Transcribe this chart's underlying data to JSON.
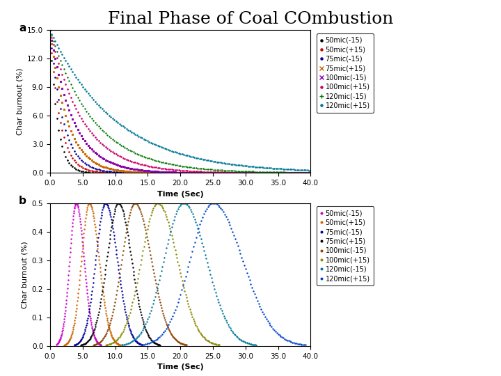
{
  "title": "Final Phase of Coal COmbustion",
  "subplot_a_label": "a",
  "subplot_b_label": "b",
  "xlabel": "Time (Sec)",
  "ylabel": "Char burnout (%)",
  "xlim_a": [
    0,
    40
  ],
  "xlim_b": [
    0,
    40
  ],
  "ylim_a": [
    0,
    15
  ],
  "ylim_b": [
    0,
    0.5
  ],
  "xticks_a": [
    0.0,
    5.0,
    10.0,
    15.0,
    20.0,
    25.0,
    30.0,
    35.0,
    40.0
  ],
  "yticks_a": [
    0.0,
    3.0,
    6.0,
    9.0,
    12.0,
    15.0
  ],
  "xticks_b": [
    0.0,
    5.0,
    10.0,
    15.0,
    20.0,
    25.0,
    30.0,
    35.0,
    40.0
  ],
  "yticks_b": [
    0.0,
    0.1,
    0.2,
    0.3,
    0.4,
    0.5
  ],
  "series_a": [
    {
      "label": "50mic(-15)",
      "color": "#000000",
      "marker": ".",
      "decay": 0.9
    },
    {
      "label": "50mic(+15)",
      "color": "#cc0000",
      "marker": ".",
      "decay": 0.65
    },
    {
      "label": "75mic(-15)",
      "color": "#000099",
      "marker": ".",
      "decay": 0.5
    },
    {
      "label": "75mic(+15)",
      "color": "#cc6600",
      "marker": "x",
      "decay": 0.38
    },
    {
      "label": "100mic(-15)",
      "color": "#8800aa",
      "marker": "x",
      "decay": 0.28
    },
    {
      "label": "100mic(+15)",
      "color": "#cc0066",
      "marker": ".",
      "decay": 0.2
    },
    {
      "label": "120mic(-15)",
      "color": "#007700",
      "marker": "+",
      "decay": 0.15
    },
    {
      "label": "120mic(+15)",
      "color": "#007799",
      "marker": ".",
      "decay": 0.1
    }
  ],
  "series_b": [
    {
      "label": "50mic(-15)",
      "color": "#cc00cc",
      "marker": ".",
      "t_start": 1.0,
      "t_peak": 4.0,
      "t_end": 7.5,
      "sigma_r": 1.0,
      "sigma_f": 1.2
    },
    {
      "label": "50mic(+15)",
      "color": "#cc6600",
      "marker": ".",
      "t_start": 2.0,
      "t_peak": 6.0,
      "t_end": 10.0,
      "sigma_r": 1.2,
      "sigma_f": 1.5
    },
    {
      "label": "75mic(-15)",
      "color": "#000099",
      "marker": ".",
      "t_start": 3.0,
      "t_peak": 8.5,
      "t_end": 13.0,
      "sigma_r": 1.5,
      "sigma_f": 1.8
    },
    {
      "label": "75mic(+15)",
      "color": "#000000",
      "marker": ".",
      "t_start": 4.5,
      "t_peak": 10.5,
      "t_end": 16.0,
      "sigma_r": 1.8,
      "sigma_f": 2.0
    },
    {
      "label": "100mic(-15)",
      "color": "#884400",
      "marker": ".",
      "t_start": 6.0,
      "t_peak": 13.0,
      "t_end": 20.0,
      "sigma_r": 2.0,
      "sigma_f": 2.5
    },
    {
      "label": "100mic(+15)",
      "color": "#888800",
      "marker": ".",
      "t_start": 8.0,
      "t_peak": 16.5,
      "t_end": 24.0,
      "sigma_r": 2.5,
      "sigma_f": 3.0
    },
    {
      "label": "120mic(-15)",
      "color": "#007799",
      "marker": ".",
      "t_start": 11.0,
      "t_peak": 20.5,
      "t_end": 29.0,
      "sigma_r": 3.0,
      "sigma_f": 3.5
    },
    {
      "label": "120mic(+15)",
      "color": "#0044cc",
      "marker": ".",
      "t_start": 14.0,
      "t_peak": 25.0,
      "t_end": 35.5,
      "sigma_r": 3.5,
      "sigma_f": 4.5
    }
  ],
  "title_fontsize": 18,
  "axis_label_fontsize": 8,
  "tick_fontsize": 7.5,
  "legend_fontsize": 7
}
